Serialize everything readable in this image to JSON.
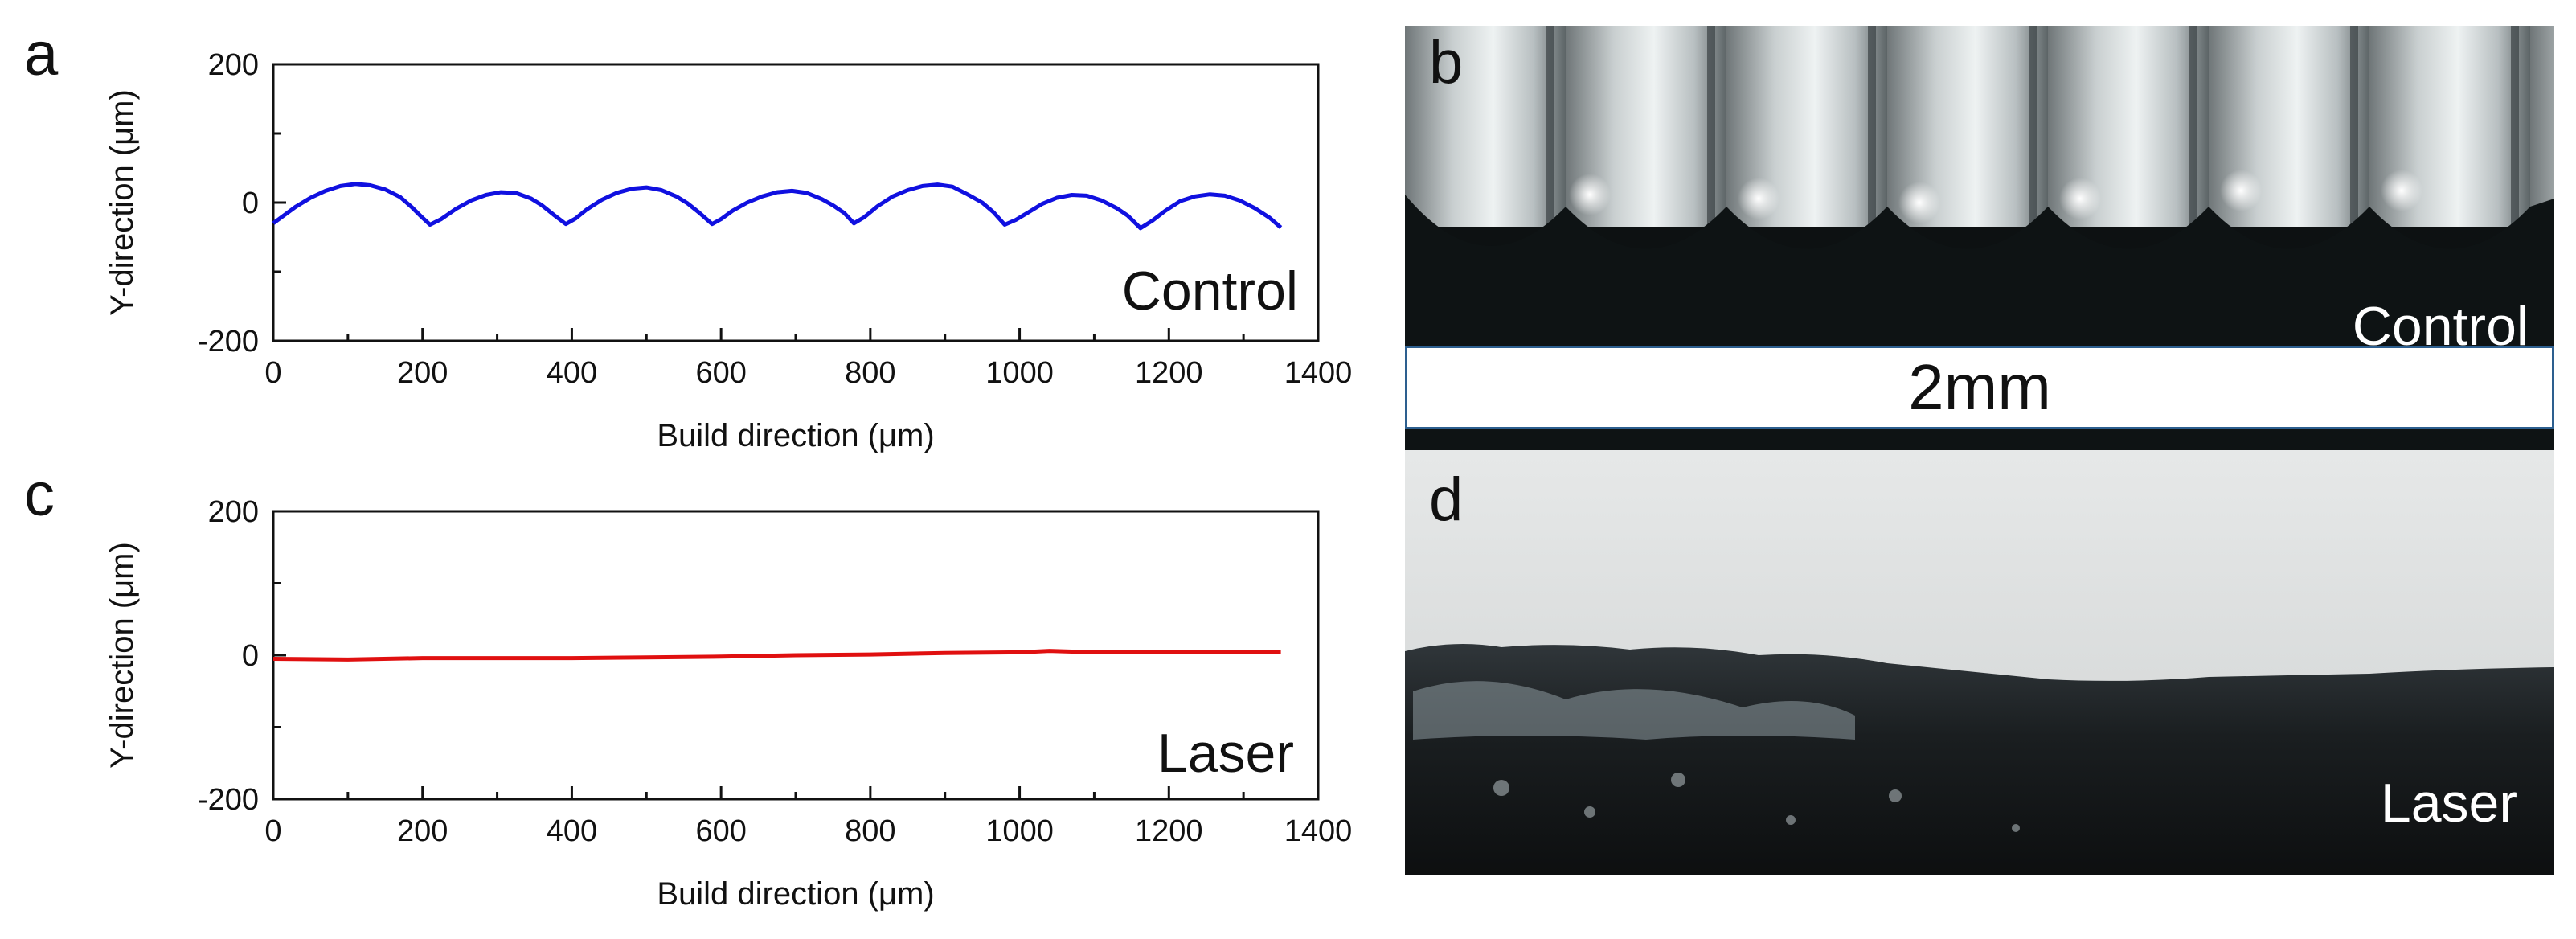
{
  "panel_letters": {
    "a": "a",
    "b": "b",
    "c": "c",
    "d": "d"
  },
  "photos": {
    "top_label": "Control",
    "bottom_label": "Laser",
    "scalebar_label": "2mm"
  },
  "chart_data": [
    {
      "type": "line",
      "xlabel": "Build direction (μm)",
      "ylabel": "Y-direction (μm)",
      "xlim": [
        0,
        1400
      ],
      "ylim": [
        -200,
        200
      ],
      "xticks": [
        0,
        200,
        400,
        600,
        800,
        1000,
        1200,
        1400
      ],
      "yticks": [
        200,
        0,
        -200
      ],
      "inset_label": "Control",
      "color": "#1010e0",
      "series": [
        {
          "x": [
            0,
            15,
            30,
            50,
            70,
            90,
            110,
            130,
            150,
            170,
            185,
            198,
            210,
            225,
            245,
            265,
            285,
            305,
            325,
            345,
            360,
            375,
            392,
            405,
            420,
            440,
            460,
            480,
            500,
            520,
            540,
            555,
            570,
            588,
            600,
            615,
            635,
            655,
            675,
            695,
            715,
            735,
            750,
            765,
            778,
            792,
            810,
            830,
            850,
            870,
            890,
            910,
            930,
            950,
            965,
            980,
            995,
            1012,
            1030,
            1050,
            1070,
            1090,
            1110,
            1130,
            1145,
            1162,
            1178,
            1195,
            1215,
            1235,
            1255,
            1275,
            1295,
            1315,
            1335,
            1350
          ],
          "y": [
            -30,
            -18,
            -6,
            7,
            17,
            24,
            27,
            25,
            19,
            8,
            -6,
            -20,
            -32,
            -24,
            -9,
            3,
            11,
            15,
            14,
            6,
            -4,
            -17,
            -31,
            -23,
            -10,
            4,
            14,
            20,
            22,
            18,
            9,
            -1,
            -14,
            -31,
            -24,
            -12,
            0,
            9,
            15,
            17,
            14,
            5,
            -4,
            -15,
            -30,
            -21,
            -5,
            9,
            18,
            24,
            26,
            23,
            12,
            0,
            -14,
            -32,
            -25,
            -14,
            -2,
            7,
            11,
            10,
            3,
            -8,
            -19,
            -37,
            -26,
            -12,
            2,
            9,
            12,
            10,
            3,
            -8,
            -22,
            -36
          ]
        }
      ]
    },
    {
      "type": "line",
      "xlabel": "Build direction (μm)",
      "ylabel": "Y-direction (μm)",
      "xlim": [
        0,
        1400
      ],
      "ylim": [
        -200,
        200
      ],
      "xticks": [
        0,
        200,
        400,
        600,
        800,
        1000,
        1200,
        1400
      ],
      "yticks": [
        200,
        0,
        -200
      ],
      "inset_label": "Laser",
      "color": "#e01010",
      "series": [
        {
          "x": [
            0,
            100,
            200,
            300,
            400,
            500,
            600,
            700,
            800,
            900,
            1000,
            1040,
            1100,
            1200,
            1300,
            1350
          ],
          "y": [
            -5,
            -6,
            -4,
            -4,
            -4,
            -3,
            -2,
            0,
            1,
            3,
            4,
            6,
            4,
            4,
            5,
            5
          ]
        }
      ]
    }
  ]
}
